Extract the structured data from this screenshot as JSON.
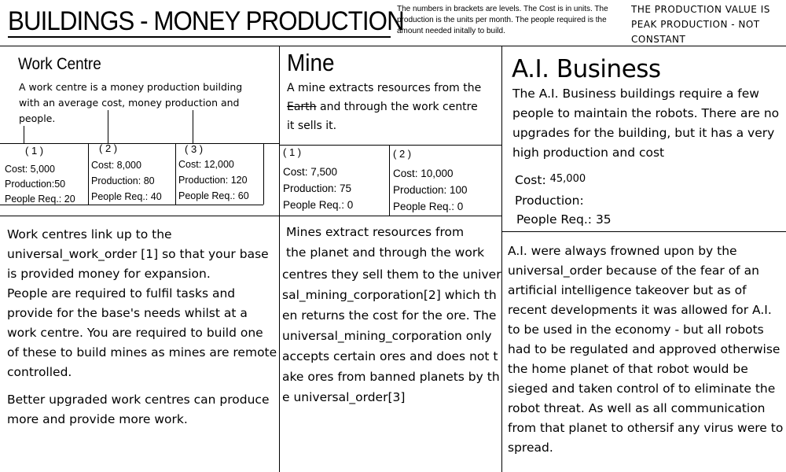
{
  "header": {
    "title": "BUILDINGS - MONEY PRODUCTION",
    "note": "The numbers in brackets are levels. The Cost is in units. The production is the units per month. The people required is the amount needed initally to build.",
    "note2": "THE PRODUCTION VALUE IS PEAK PRODUCTION - NOT CONSTANT"
  },
  "work_centre": {
    "title": "Work Centre",
    "description": "A work centre is a money production building with an average cost, money production and people.",
    "levels": [
      {
        "label": "( 1 )",
        "cost": "Cost: 5,000",
        "production": "Production:50",
        "people": "People Req.: 20"
      },
      {
        "label": "( 2 )",
        "cost": "Cost: 8,000",
        "production": "Production: 80",
        "people": "People Req.: 40"
      },
      {
        "label": "( 3 )",
        "cost": "Cost: 12,000",
        "production": "Production: 120",
        "people": "People Req.: 60"
      }
    ],
    "body_1": "Work centres link up to the universal_work_order [1] so that your base is provided money for expansion.",
    "body_2": "People are required to fulfil tasks and provide for the base's needs whilst at a work centre. You are required to build one of these to build mines as mines are remote controlled.",
    "body_3": "Better upgraded work centres can produce more and provide more work."
  },
  "mine": {
    "title": "Mine",
    "desc_a": "A mine extracts resources from the",
    "desc_strike": "Earth",
    "desc_b": "and through the work centre",
    "desc_c": "it sells it.",
    "levels": [
      {
        "label": "( 1 )",
        "cost": "Cost: 7,500",
        "production": "Production: 75",
        "people": "People Req.: 0"
      },
      {
        "label": "( 2 )",
        "cost": "Cost: 10,000",
        "production": "Production: 100",
        "people": "People Req.: 0"
      }
    ],
    "body_line_1": "Mines extract resources from",
    "body_line_2": "the planet and through the work",
    "body_rest": "centres they sell them to the universal_mining_corporation[2] which then returns the cost for the ore. The universal_mining_corporation only accepts certain ores and does not take ores from banned planets by the universal_order[3]"
  },
  "ai": {
    "title": "A.I. Business",
    "description": "The A.I. Business buildings require a few people to maintain the robots. There are no upgrades for the building, but it has a very high production and cost",
    "cost_label": "Cost:",
    "cost_value": "45,000",
    "production_label": "Production:",
    "people": "People Req.: 35",
    "body": "A.I. were always frowned upon by the universal_order because of the fear of an artificial intelligence takeover but as of recent developments it was allowed for A.I. to be used in the economy - but all robots had to be regulated and approved otherwise the home planet of that robot would be sieged and taken control of to eliminate the robot threat. As well as all communication from that planet to othersif any virus were to spread."
  }
}
